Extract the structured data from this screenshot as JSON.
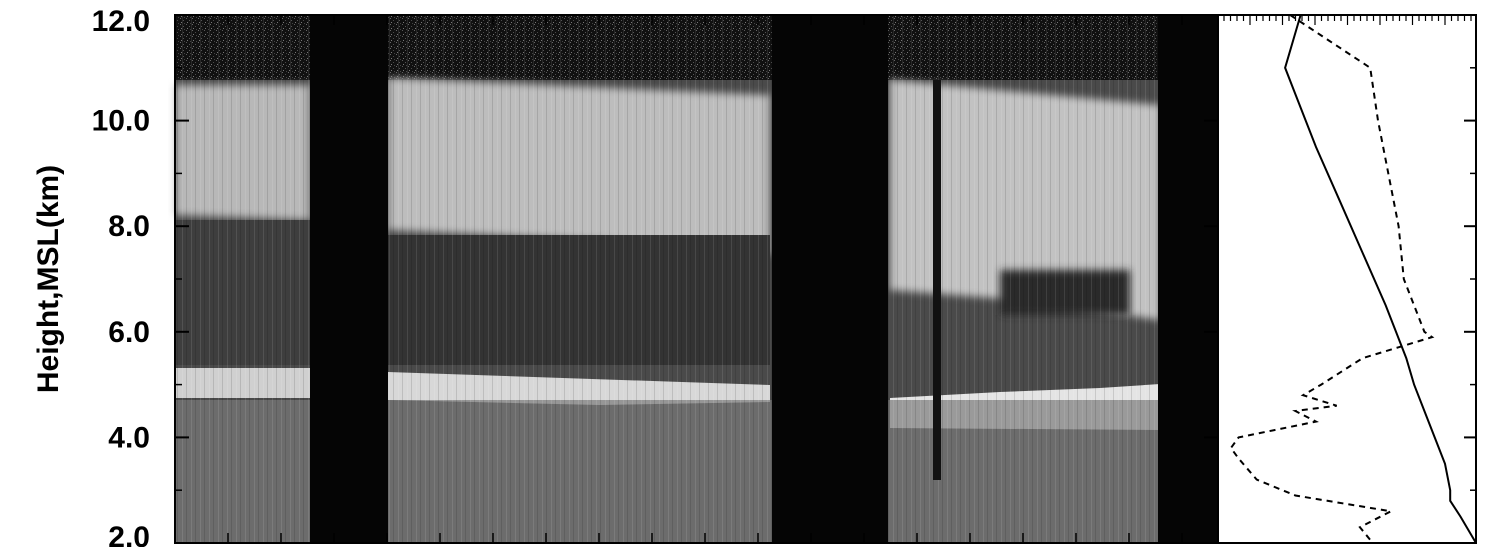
{
  "chart_data": [
    {
      "type": "heatmap",
      "description_panel": "lidar backscatter time-height image",
      "ylabel": "Height,MSL(km)",
      "ylim": [
        2.0,
        12.0
      ],
      "yticks": [
        2.0,
        4.0,
        6.0,
        8.0,
        10.0,
        12.0
      ],
      "ytick_labels": [
        "2.0",
        "4.0",
        "6.0",
        "8.0",
        "10.0",
        "12.0"
      ],
      "colormap": "grayscale",
      "grid": false
    },
    {
      "type": "line",
      "ylim": [
        2.0,
        12.0
      ],
      "grid": false,
      "series": [
        {
          "style": "solid",
          "y": [
            12.0,
            11.0,
            10.5,
            9.5,
            8.5,
            7.5,
            6.5,
            5.5,
            5.0,
            4.5,
            4.0,
            3.5,
            3.0,
            2.8,
            2.5,
            2.0
          ],
          "x": [
            0.32,
            0.26,
            0.3,
            0.38,
            0.47,
            0.56,
            0.65,
            0.73,
            0.76,
            0.8,
            0.84,
            0.88,
            0.9,
            0.9,
            0.94,
            1.0
          ]
        },
        {
          "style": "dashed",
          "y": [
            12.0,
            11.0,
            10.0,
            9.0,
            8.0,
            7.0,
            6.0,
            5.9,
            5.5,
            5.0,
            4.8,
            4.6,
            4.5,
            4.3,
            4.0,
            3.8,
            3.6,
            3.2,
            2.9,
            2.6,
            2.3,
            2.0
          ],
          "x": [
            0.28,
            0.59,
            0.62,
            0.66,
            0.7,
            0.72,
            0.8,
            0.83,
            0.56,
            0.4,
            0.33,
            0.46,
            0.3,
            0.38,
            0.08,
            0.05,
            0.08,
            0.15,
            0.3,
            0.67,
            0.55,
            0.6
          ]
        }
      ]
    }
  ]
}
